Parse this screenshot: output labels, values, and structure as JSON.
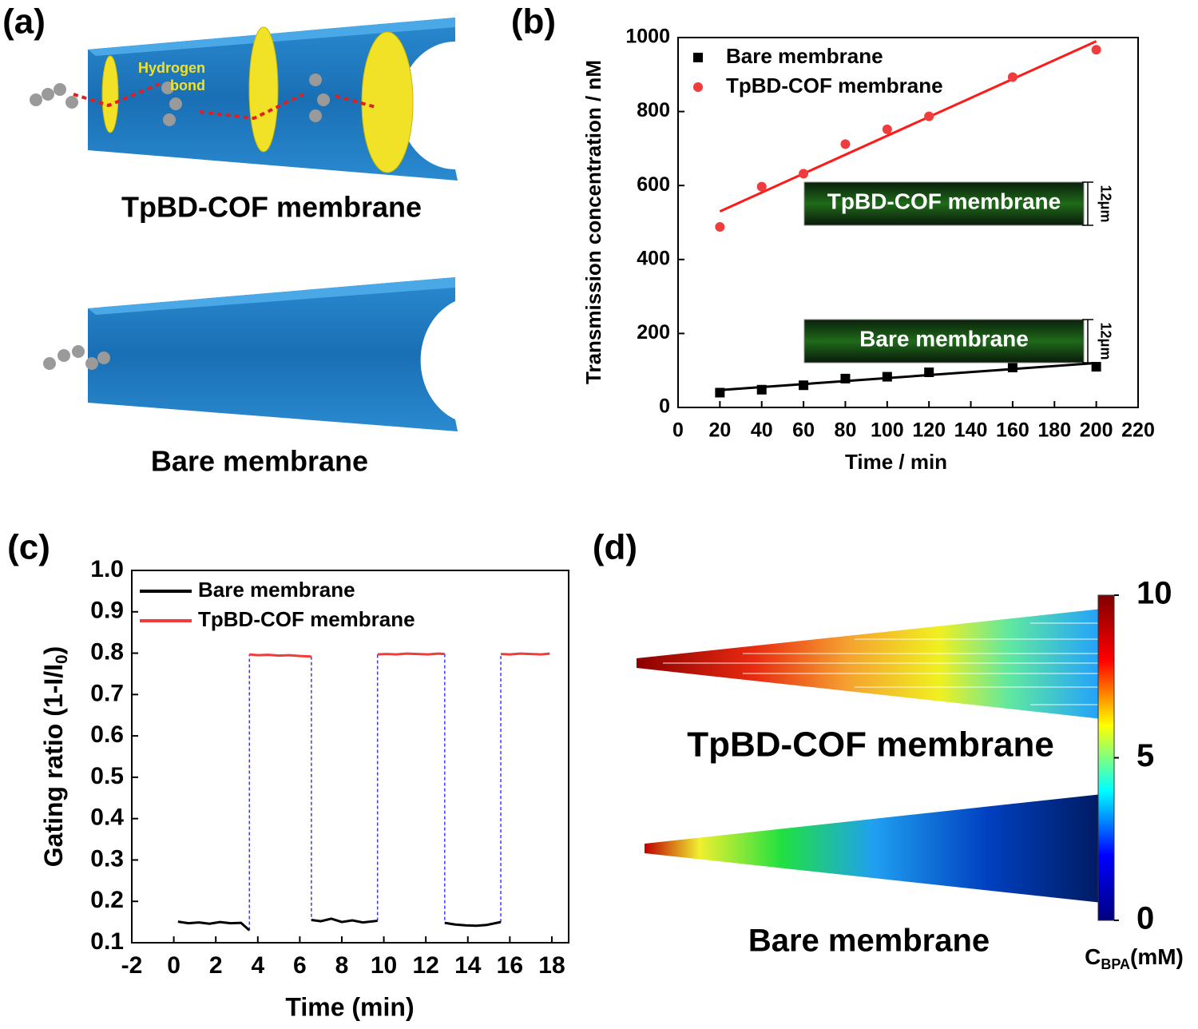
{
  "panel_labels": [
    "(a)",
    "(b)",
    "(c)",
    "(d)"
  ],
  "illustration_a": {
    "bond_label": [
      "Hydrogen",
      "bond"
    ],
    "top_caption": "TpBD-COF membrane",
    "bottom_caption": "Bare membrane"
  },
  "illustration_d": {
    "top_caption": "TpBD-COF membrane",
    "bottom_caption": "Bare membrane"
  },
  "chart_data": [
    {
      "type": "scatter",
      "x_label": "Time / min",
      "y_label": "Transmission concentration / nM",
      "xlim": [
        0,
        220
      ],
      "xticks": [
        0,
        20,
        40,
        60,
        80,
        100,
        120,
        140,
        160,
        180,
        200,
        220
      ],
      "ylim": [
        0,
        1000
      ],
      "yticks": [
        0,
        200,
        400,
        600,
        800,
        1000
      ],
      "legend": "upper left",
      "series": [
        {
          "name": "Bare membrane",
          "color": "#000000",
          "marker": "square",
          "x": [
            20,
            40,
            60,
            80,
            100,
            120,
            160,
            200
          ],
          "values": [
            40,
            48,
            60,
            78,
            83,
            95,
            108,
            110
          ],
          "fit_x": [
            20,
            200
          ],
          "fit_values": [
            47,
            120
          ]
        },
        {
          "name": "TpBD-COF membrane",
          "color": "#f03c3c",
          "marker": "circle",
          "x": [
            20,
            40,
            60,
            80,
            100,
            120,
            160,
            200
          ],
          "values": [
            488,
            597,
            632,
            712,
            752,
            787,
            893,
            967
          ],
          "fit_x": [
            20,
            200
          ],
          "fit_values": [
            530,
            990
          ]
        }
      ],
      "insets": [
        {
          "label": "TpBD-COF membrane",
          "scale": "12μm"
        },
        {
          "label": "Bare membrane",
          "scale": "12μm"
        }
      ]
    },
    {
      "type": "line",
      "x_label": "Time (min)",
      "y_label": [
        "Gating ratio (1-I/I",
        "0",
        ")"
      ],
      "xlim": [
        -2,
        18.8
      ],
      "xticks": [
        -2,
        0,
        2,
        4,
        6,
        8,
        10,
        12,
        14,
        16,
        18
      ],
      "ylim": [
        0.1,
        1.0
      ],
      "yticks": [
        0.1,
        0.2,
        0.3,
        0.4,
        0.5,
        0.6,
        0.7,
        0.8,
        0.9,
        {
          "value": 1.0,
          "label": "1.0"
        }
      ],
      "legend": "upper left",
      "series": [
        {
          "name": "Bare membrane",
          "color": "#000000",
          "style": "solid",
          "x": [
            0.2,
            0.7,
            1.2,
            1.7,
            2.2,
            2.7,
            3.2,
            3.6,
            5,
            6.55,
            7.0,
            7.5,
            8.0,
            8.5,
            9.0,
            9.7,
            11,
            12.9,
            13.4,
            13.9,
            14.4,
            14.9,
            15.57
          ],
          "values": [
            0.151,
            0.147,
            0.149,
            0.146,
            0.15,
            0.147,
            0.148,
            0.13,
            null,
            0.155,
            0.152,
            0.158,
            0.15,
            0.154,
            0.149,
            0.153,
            null,
            0.148,
            0.144,
            0.142,
            0.141,
            0.143,
            0.15
          ]
        },
        {
          "name": "TpBD-COF membrane",
          "color": "#f03c3c",
          "style": "solid",
          "x": [
            3.6,
            4.0,
            4.5,
            5.0,
            5.5,
            6.0,
            6.55,
            8,
            9.7,
            10.1,
            10.6,
            11.1,
            11.6,
            12.1,
            12.6,
            12.9,
            14,
            15.57,
            16.0,
            16.5,
            17.0,
            17.5,
            17.9
          ],
          "values": [
            0.797,
            0.795,
            0.796,
            0.794,
            0.795,
            0.793,
            0.792,
            null,
            0.797,
            0.798,
            0.797,
            0.799,
            0.798,
            0.797,
            0.799,
            0.798,
            null,
            0.798,
            0.797,
            0.799,
            0.798,
            0.797,
            0.799
          ]
        },
        {
          "color": "#3a3aff",
          "style": "dashed",
          "x": [
            3.6,
            3.6,
            5,
            6.55,
            6.55,
            8,
            9.7,
            9.7,
            11,
            12.9,
            12.9,
            14,
            15.57,
            15.57
          ],
          "values": [
            0.13,
            0.797,
            null,
            0.792,
            0.155,
            null,
            0.153,
            0.797,
            null,
            0.798,
            0.148,
            null,
            0.15,
            0.798
          ]
        }
      ]
    },
    {
      "type": "colorbar",
      "ylim": [
        0,
        10
      ],
      "yticks": [
        0,
        5,
        10
      ],
      "label": [
        "C",
        "BPA",
        "(mM)"
      ],
      "colors": [
        "#00007f",
        "#0000ff",
        "#00ffff",
        "#ffff00",
        "#ff0000",
        "#7f0000"
      ]
    }
  ]
}
